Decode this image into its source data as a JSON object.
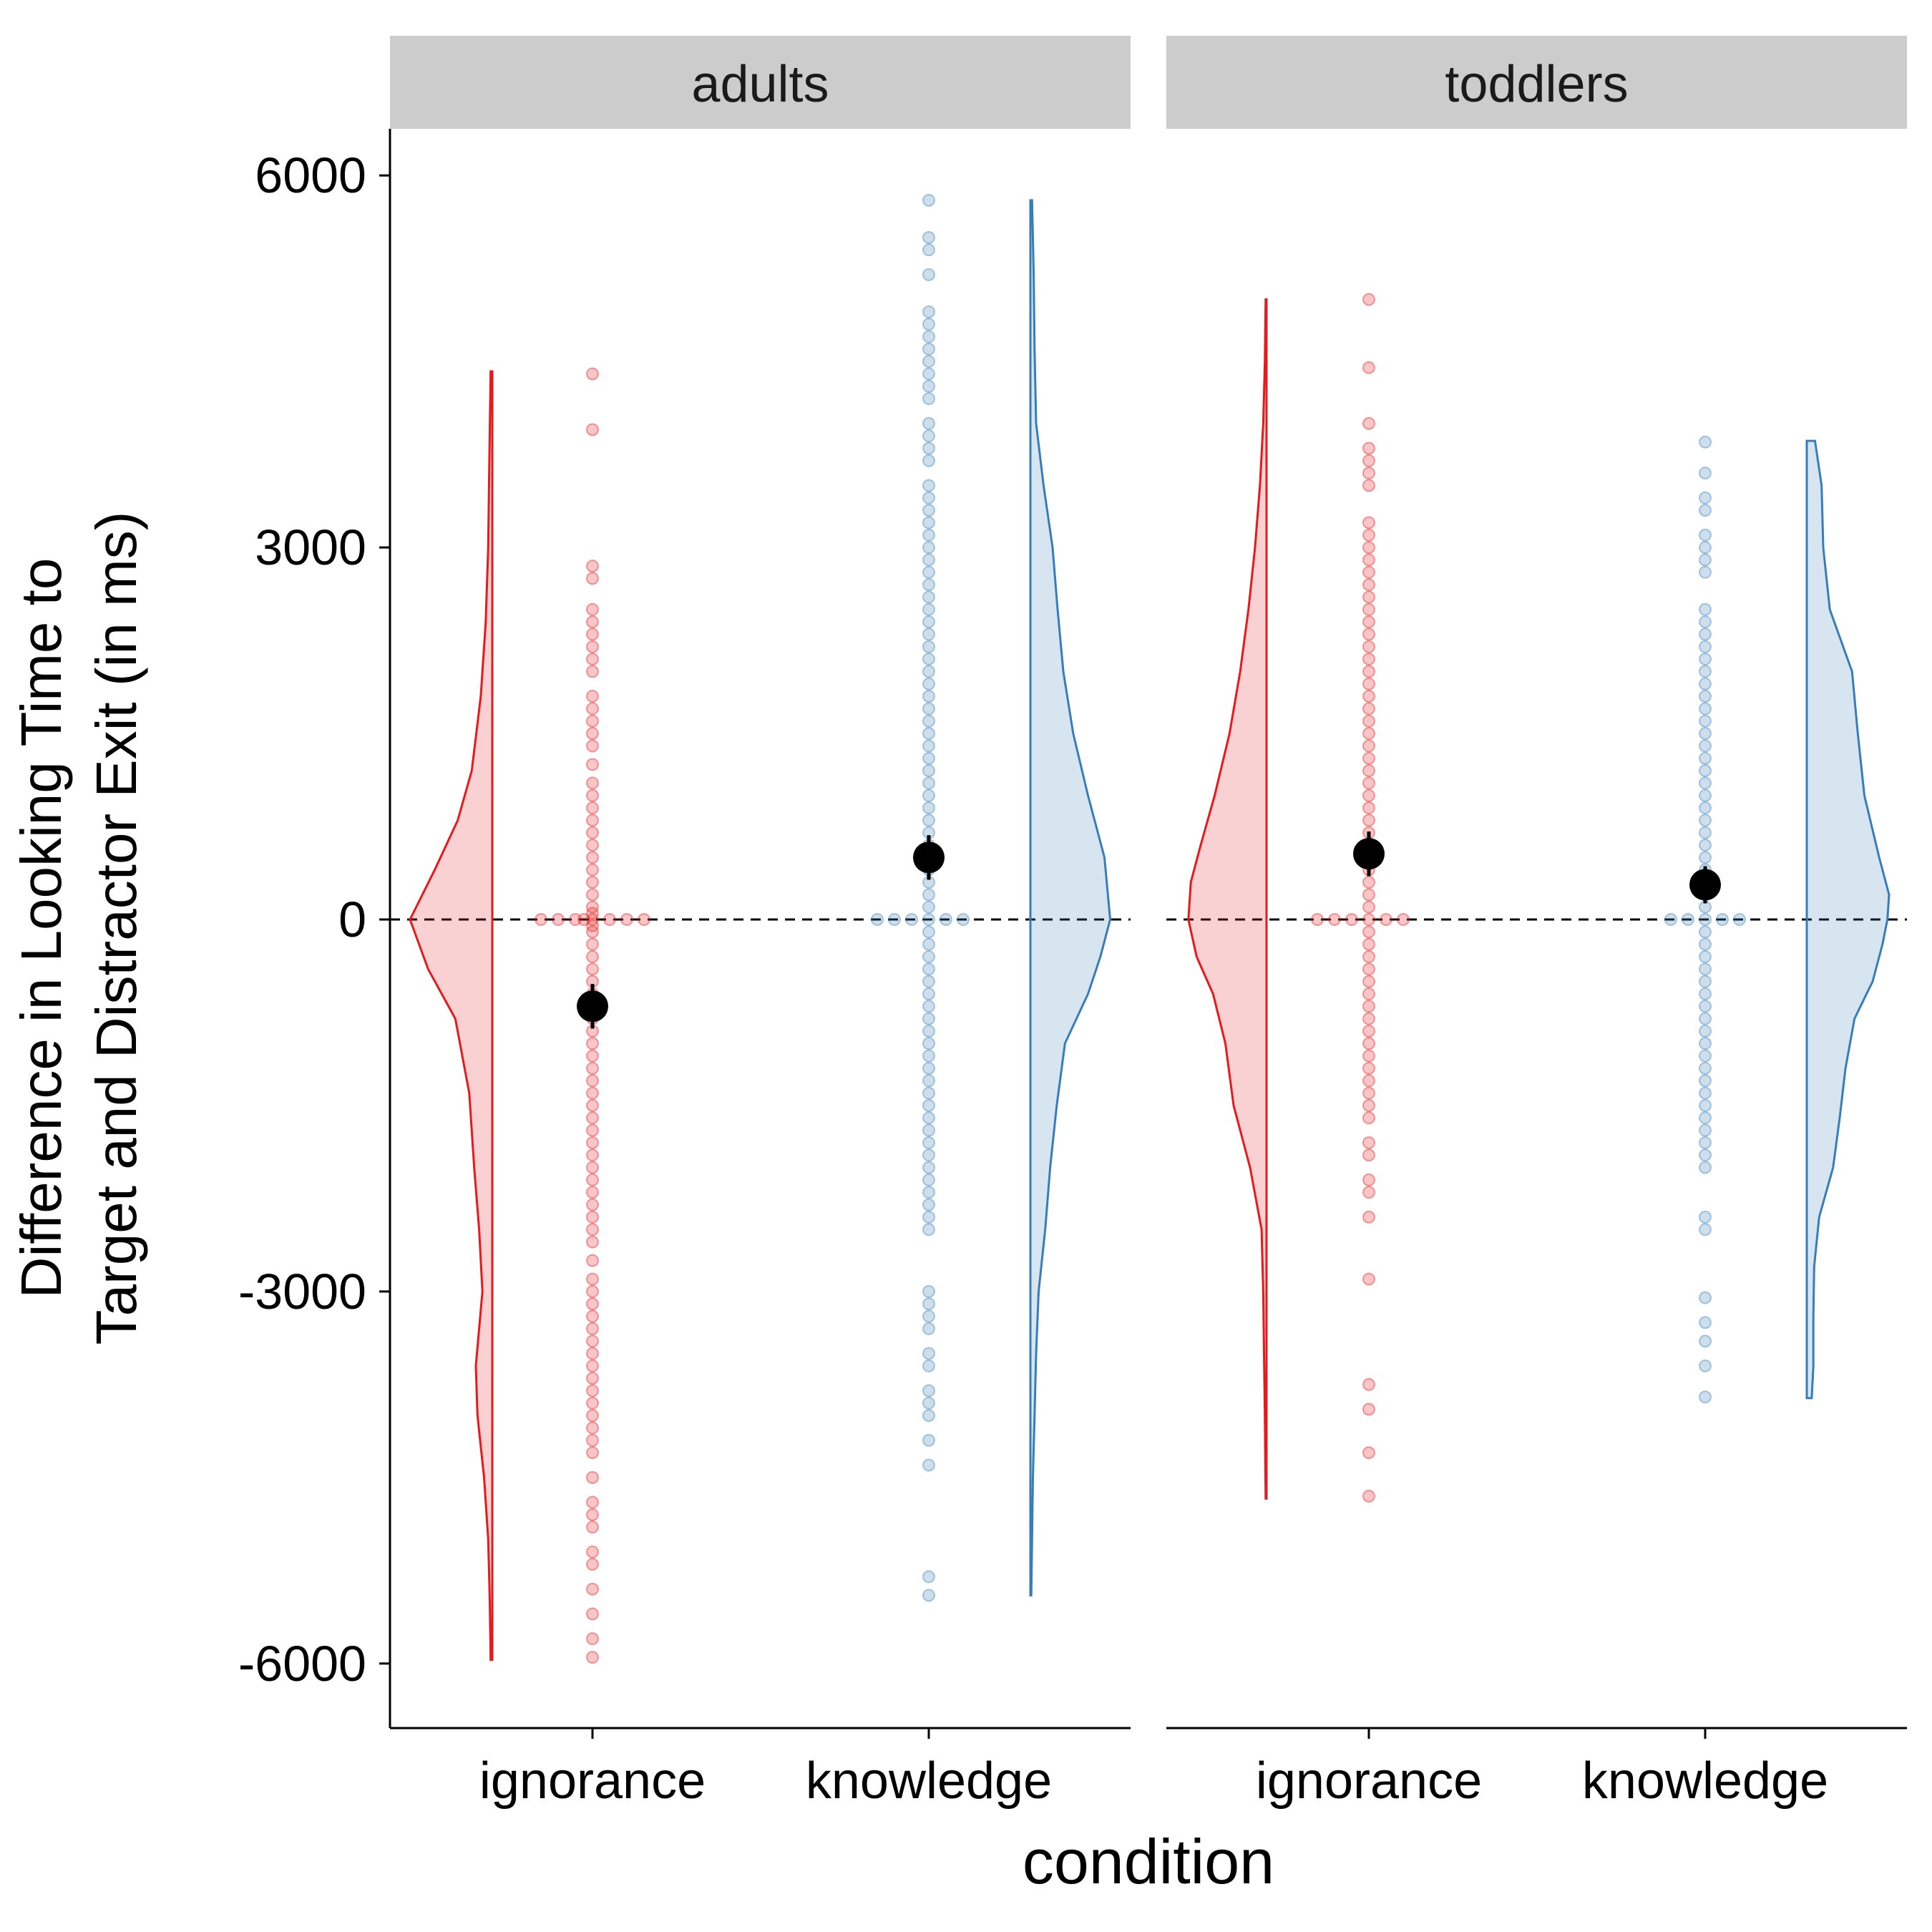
{
  "chart_data": {
    "type": "scatter",
    "ylabel": [
      "Difference in Looking Time to",
      "Target and Distractor Exit (in ms)"
    ],
    "xlabel": "condition",
    "ylim": [
      -6500,
      6400
    ],
    "y_ticks": [
      6000,
      3000,
      0,
      -3000,
      -6000
    ],
    "y_tick_labels": [
      "6000",
      "3000",
      "0",
      "-3000",
      "-6000"
    ],
    "categories": [
      "ignorance",
      "knowledge"
    ],
    "reference_line_y": 0,
    "colors": {
      "ignorance": "#e41a1c",
      "knowledge": "#377eb8",
      "mean": "#000000",
      "strip": "#cccccc",
      "axis": "#000000"
    },
    "panels": [
      {
        "name": "adults",
        "groups": [
          {
            "condition": "ignorance",
            "mean": -700,
            "se_low": -880,
            "se_high": -520,
            "points": [
              4400,
              3950,
              2850,
              2750,
              2500,
              2400,
              2300,
              2200,
              2100,
              2000,
              1800,
              1700,
              1600,
              1500,
              1400,
              1250,
              1100,
              1000,
              900,
              800,
              700,
              600,
              500,
              400,
              300,
              200,
              100,
              50,
              0,
              0,
              0,
              0,
              0,
              0,
              0,
              0,
              -50,
              -100,
              -200,
              -300,
              -400,
              -500,
              -600,
              -700,
              -800,
              -900,
              -1000,
              -1100,
              -1200,
              -1300,
              -1400,
              -1500,
              -1600,
              -1700,
              -1800,
              -1900,
              -2000,
              -2100,
              -2200,
              -2300,
              -2400,
              -2500,
              -2600,
              -2750,
              -2900,
              -3000,
              -3100,
              -3200,
              -3300,
              -3400,
              -3500,
              -3600,
              -3700,
              -3800,
              -3900,
              -4000,
              -4100,
              -4200,
              -4300,
              -4500,
              -4700,
              -4800,
              -4900,
              -5100,
              -5200,
              -5400,
              -5600,
              -5800,
              -5950
            ],
            "density_y": [
              4420,
              3500,
              3000,
              2400,
              1800,
              1200,
              800,
              400,
              0,
              -400,
              -800,
              -1400,
              -2000,
              -2500,
              -3000,
              -3300,
              -3600,
              -4000,
              -4500,
              -5000,
              -5500,
              -5970
            ],
            "density_w": [
              0.02,
              0.04,
              0.05,
              0.08,
              0.14,
              0.25,
              0.42,
              0.7,
              1.0,
              0.78,
              0.45,
              0.28,
              0.22,
              0.16,
              0.12,
              0.16,
              0.2,
              0.18,
              0.1,
              0.05,
              0.03,
              0.02
            ]
          },
          {
            "condition": "knowledge",
            "mean": 500,
            "se_low": 320,
            "se_high": 680,
            "points": [
              5800,
              5500,
              5400,
              5200,
              4900,
              4800,
              4700,
              4600,
              4500,
              4400,
              4300,
              4200,
              4000,
              3900,
              3800,
              3700,
              3500,
              3400,
              3300,
              3200,
              3100,
              3000,
              2900,
              2800,
              2700,
              2600,
              2500,
              2400,
              2300,
              2200,
              2100,
              2000,
              1900,
              1800,
              1700,
              1600,
              1500,
              1400,
              1300,
              1200,
              1100,
              1000,
              900,
              800,
              700,
              600,
              500,
              400,
              300,
              200,
              100,
              0,
              0,
              0,
              0,
              0,
              0,
              -100,
              -200,
              -300,
              -400,
              -500,
              -600,
              -700,
              -800,
              -900,
              -1000,
              -1100,
              -1200,
              -1300,
              -1400,
              -1500,
              -1600,
              -1700,
              -1800,
              -1900,
              -2000,
              -2100,
              -2200,
              -2300,
              -2400,
              -2500,
              -3000,
              -3100,
              -3200,
              -3300,
              -3500,
              -3600,
              -3800,
              -3900,
              -4000,
              -4200,
              -4400,
              -5300,
              -5450
            ],
            "density_y": [
              5800,
              5200,
              4600,
              4000,
              3500,
              3000,
              2500,
              2000,
              1500,
              1000,
              500,
              0,
              -300,
              -600,
              -1000,
              -1500,
              -2000,
              -2500,
              -3000,
              -3500,
              -4000,
              -4500,
              -5000,
              -5450
            ],
            "density_w": [
              0.02,
              0.04,
              0.05,
              0.07,
              0.16,
              0.27,
              0.33,
              0.4,
              0.52,
              0.7,
              0.9,
              0.97,
              0.85,
              0.7,
              0.42,
              0.32,
              0.24,
              0.18,
              0.1,
              0.07,
              0.05,
              0.03,
              0.02,
              0.01
            ]
          }
        ]
      },
      {
        "name": "toddlers",
        "groups": [
          {
            "condition": "ignorance",
            "mean": 530,
            "se_low": 350,
            "se_high": 710,
            "points": [
              5000,
              4450,
              4000,
              3800,
              3700,
              3600,
              3500,
              3200,
              3100,
              3000,
              2900,
              2800,
              2700,
              2600,
              2500,
              2400,
              2300,
              2200,
              2100,
              2000,
              1900,
              1800,
              1700,
              1600,
              1500,
              1400,
              1300,
              1200,
              1100,
              1000,
              900,
              800,
              700,
              600,
              500,
              400,
              300,
              200,
              100,
              0,
              0,
              0,
              0,
              0,
              0,
              -100,
              -200,
              -300,
              -400,
              -500,
              -600,
              -700,
              -800,
              -900,
              -1000,
              -1100,
              -1200,
              -1300,
              -1400,
              -1500,
              -1600,
              -1800,
              -1900,
              -2100,
              -2200,
              -2400,
              -2900,
              -3750,
              -3950,
              -4300,
              -4650
            ],
            "density_y": [
              5000,
              4500,
              4000,
              3500,
              3000,
              2500,
              2000,
              1500,
              1000,
              600,
              300,
              0,
              -300,
              -600,
              -1000,
              -1500,
              -2000,
              -2500,
              -3000,
              -3500,
              -4000,
              -4670
            ],
            "density_w": [
              0.01,
              0.02,
              0.04,
              0.08,
              0.14,
              0.22,
              0.32,
              0.45,
              0.63,
              0.8,
              0.92,
              0.95,
              0.85,
              0.65,
              0.5,
              0.4,
              0.2,
              0.06,
              0.04,
              0.03,
              0.02,
              0.01
            ]
          },
          {
            "condition": "knowledge",
            "mean": 280,
            "se_low": 130,
            "se_high": 430,
            "points": [
              3850,
              3600,
              3400,
              3300,
              3100,
              3000,
              2900,
              2800,
              2500,
              2400,
              2300,
              2200,
              2100,
              2000,
              1900,
              1800,
              1700,
              1600,
              1500,
              1400,
              1300,
              1200,
              1100,
              1000,
              900,
              800,
              700,
              600,
              500,
              400,
              300,
              200,
              100,
              0,
              0,
              0,
              0,
              0,
              -100,
              -200,
              -300,
              -400,
              -500,
              -600,
              -700,
              -800,
              -900,
              -1000,
              -1100,
              -1200,
              -1300,
              -1400,
              -1500,
              -1600,
              -1700,
              -1800,
              -1900,
              -2000,
              -2400,
              -2500,
              -3050,
              -3250,
              -3400,
              -3600,
              -3850
            ],
            "density_y": [
              3860,
              3500,
              3000,
              2500,
              2000,
              1500,
              1000,
              500,
              200,
              0,
              -200,
              -500,
              -800,
              -1200,
              -1600,
              -2000,
              -2400,
              -2800,
              -3200,
              -3600,
              -3860
            ],
            "density_w": [
              0.1,
              0.18,
              0.2,
              0.28,
              0.55,
              0.62,
              0.7,
              0.88,
              1.0,
              0.98,
              0.92,
              0.8,
              0.58,
              0.47,
              0.4,
              0.32,
              0.15,
              0.09,
              0.08,
              0.08,
              0.06
            ]
          }
        ]
      }
    ]
  }
}
